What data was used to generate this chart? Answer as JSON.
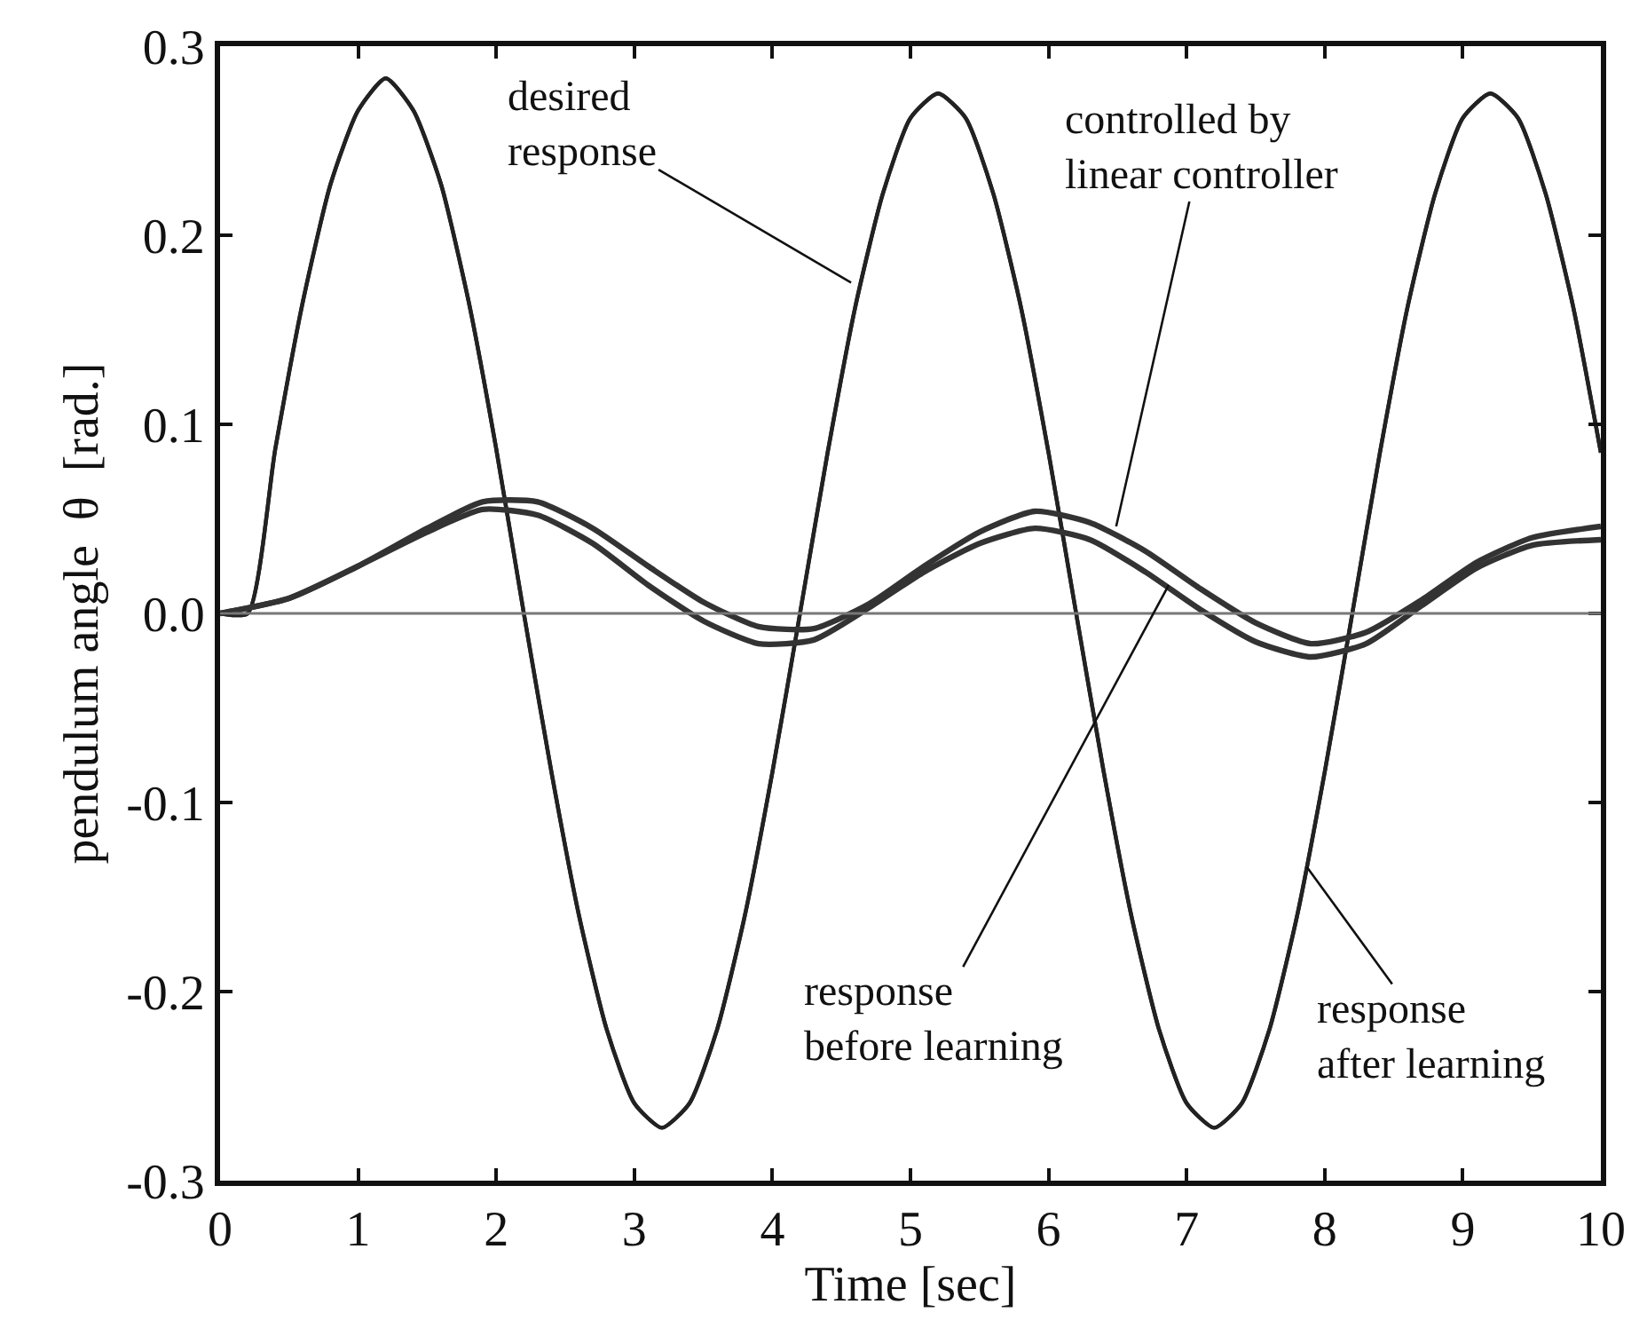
{
  "chart_data": {
    "type": "line",
    "xlabel": "Time [sec]",
    "ylabel": "pendulum angle  θ  [rad.]",
    "xlim": [
      0,
      10
    ],
    "xticks": [
      0,
      1,
      2,
      3,
      4,
      5,
      6,
      7,
      8,
      9,
      10
    ],
    "ylim": [
      -0.3,
      0.3
    ],
    "yticks": [
      {
        "value": -0.3,
        "label": "-0.3"
      },
      {
        "value": -0.2,
        "label": "-0.2"
      },
      {
        "value": -0.1,
        "label": "-0.1"
      },
      {
        "value": 0,
        "label": "0.0"
      },
      {
        "value": 0.1,
        "label": "0.1"
      },
      {
        "value": 0.2,
        "label": "0.2"
      },
      {
        "value": 0.3,
        "label": "0.3"
      }
    ],
    "marker": "none",
    "line_style": "solid",
    "series": [
      {
        "color": "#222222",
        "x": [
          0,
          0.2,
          0.4,
          0.6,
          0.8,
          1.0,
          1.2,
          1.4,
          1.6,
          1.8,
          2.0,
          2.2,
          2.4,
          2.6,
          2.8,
          3.0,
          3.2,
          3.4,
          3.6,
          3.8,
          4.0,
          4.2,
          4.4,
          4.6,
          4.8,
          5.0,
          5.2,
          5.4,
          5.6,
          5.8,
          6.0,
          6.2,
          6.4,
          6.6,
          6.8,
          7.0,
          7.2,
          7.4,
          7.6,
          7.8,
          8.0,
          8.2,
          8.4,
          8.6,
          8.8,
          9.0,
          9.2,
          9.4,
          9.6,
          9.8,
          10
        ],
        "values": [
          0,
          0,
          0.087,
          0.165,
          0.227,
          0.266,
          0.283,
          0.266,
          0.227,
          0.165,
          0.087,
          0,
          -0.084,
          -0.16,
          -0.22,
          -0.259,
          -0.272,
          -0.259,
          -0.22,
          -0.16,
          -0.084,
          0,
          0.085,
          0.162,
          0.222,
          0.262,
          0.275,
          0.262,
          0.222,
          0.162,
          0.085,
          0,
          -0.084,
          -0.16,
          -0.22,
          -0.259,
          -0.272,
          -0.259,
          -0.22,
          -0.16,
          -0.084,
          0,
          0.085,
          0.162,
          0.222,
          0.262,
          0.275,
          0.262,
          0.222,
          0.162,
          0.085
        ]
      },
      {
        "color": "#222222",
        "x": [
          0,
          0.2,
          0.4,
          0.6,
          0.8,
          1.0,
          1.2,
          1.4,
          1.6,
          1.8,
          2.0,
          2.2,
          2.4,
          2.6,
          2.8,
          3.0,
          3.2,
          3.4,
          3.6,
          3.8,
          4.0,
          4.2,
          4.4,
          4.6,
          4.8,
          5.0,
          5.2,
          5.4,
          5.6,
          5.8,
          6.0,
          6.2,
          6.4,
          6.6,
          6.8,
          7.0,
          7.2,
          7.4,
          7.6,
          7.8,
          8.0,
          8.2,
          8.4,
          8.6,
          8.8,
          9.0,
          9.2,
          9.4,
          9.6,
          9.8,
          10
        ],
        "values": [
          0,
          0,
          0.087,
          0.165,
          0.227,
          0.266,
          0.283,
          0.266,
          0.227,
          0.165,
          0.087,
          0,
          -0.084,
          -0.16,
          -0.22,
          -0.259,
          -0.272,
          -0.259,
          -0.22,
          -0.16,
          -0.084,
          0,
          0.085,
          0.162,
          0.222,
          0.262,
          0.275,
          0.262,
          0.222,
          0.162,
          0.085,
          0,
          -0.084,
          -0.16,
          -0.22,
          -0.259,
          -0.272,
          -0.259,
          -0.22,
          -0.16,
          -0.084,
          0,
          0.085,
          0.162,
          0.222,
          0.262,
          0.275,
          0.262,
          0.222,
          0.162,
          0.085
        ]
      },
      {
        "color": "#333333",
        "x": [
          0,
          0.5,
          1,
          1.5,
          1.9,
          2.3,
          2.7,
          3.1,
          3.5,
          3.9,
          4.3,
          4.7,
          5.1,
          5.5,
          5.9,
          6.3,
          6.7,
          7.1,
          7.5,
          7.9,
          8.3,
          8.7,
          9.1,
          9.5,
          10
        ],
        "values": [
          0,
          0.008,
          0.025,
          0.045,
          0.059,
          0.059,
          0.045,
          0.025,
          0.006,
          -0.007,
          -0.008,
          0.005,
          0.025,
          0.043,
          0.054,
          0.048,
          0.033,
          0.013,
          -0.005,
          -0.016,
          -0.01,
          0.007,
          0.027,
          0.04,
          0.046
        ]
      },
      {
        "color": "#333333",
        "x": [
          0,
          0.5,
          1,
          1.5,
          1.9,
          2.3,
          2.7,
          3.1,
          3.5,
          3.9,
          4.3,
          4.7,
          5.1,
          5.5,
          5.9,
          6.3,
          6.7,
          7.1,
          7.5,
          7.9,
          8.3,
          8.7,
          9.1,
          9.5,
          10
        ],
        "values": [
          0,
          0.008,
          0.025,
          0.043,
          0.055,
          0.052,
          0.037,
          0.015,
          -0.004,
          -0.016,
          -0.014,
          0.003,
          0.022,
          0.037,
          0.045,
          0.039,
          0.022,
          0.002,
          -0.015,
          -0.023,
          -0.016,
          0.004,
          0.024,
          0.036,
          0.039
        ]
      }
    ],
    "ref_lines": [
      {
        "axis": "y",
        "value": 0,
        "color": "#777777",
        "line_style": "solid"
      }
    ],
    "annotations": [
      {
        "text": "desired\nresponse",
        "x": 4.57,
        "y": 0.175
      },
      {
        "text": "controlled by\nlinear controller",
        "x": 6.49,
        "y": 0.046
      },
      {
        "text": "response\nbefore learning",
        "x": 6.87,
        "y": 0.015
      },
      {
        "text": "response\nafter learning",
        "x": 7.87,
        "y": -0.134
      }
    ]
  }
}
